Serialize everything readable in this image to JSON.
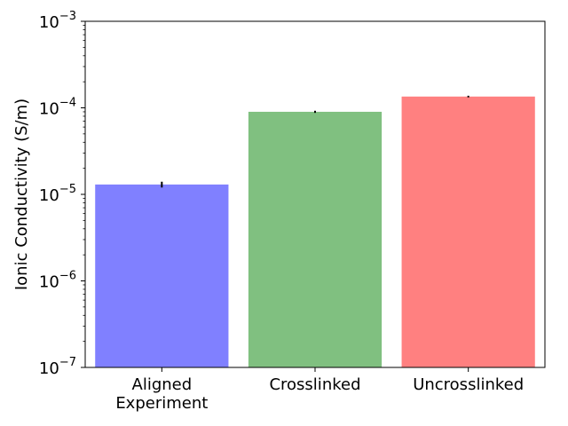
{
  "chart_data": {
    "type": "bar",
    "yscale": "log",
    "ylabel": "Ionic Conductivity (S/m)",
    "ylim": [
      1e-07,
      0.001
    ],
    "categories": [
      [
        "Aligned",
        "Experiment"
      ],
      [
        "Crosslinked"
      ],
      [
        "Uncrosslinked"
      ]
    ],
    "values": [
      1.3e-05,
      9e-05,
      0.000135
    ],
    "errors": [
      1e-06,
      2.5e-06,
      3e-06
    ],
    "colors": [
      "#8080ff",
      "#80c080",
      "#ff8080"
    ],
    "y_ticks": [
      {
        "value": 1e-07,
        "exp": "−7"
      },
      {
        "value": 1e-06,
        "exp": "−6"
      },
      {
        "value": 1e-05,
        "exp": "−5"
      },
      {
        "value": 0.0001,
        "exp": "−4"
      },
      {
        "value": 0.001,
        "exp": "−3"
      }
    ],
    "grid": false,
    "legend": "none"
  }
}
